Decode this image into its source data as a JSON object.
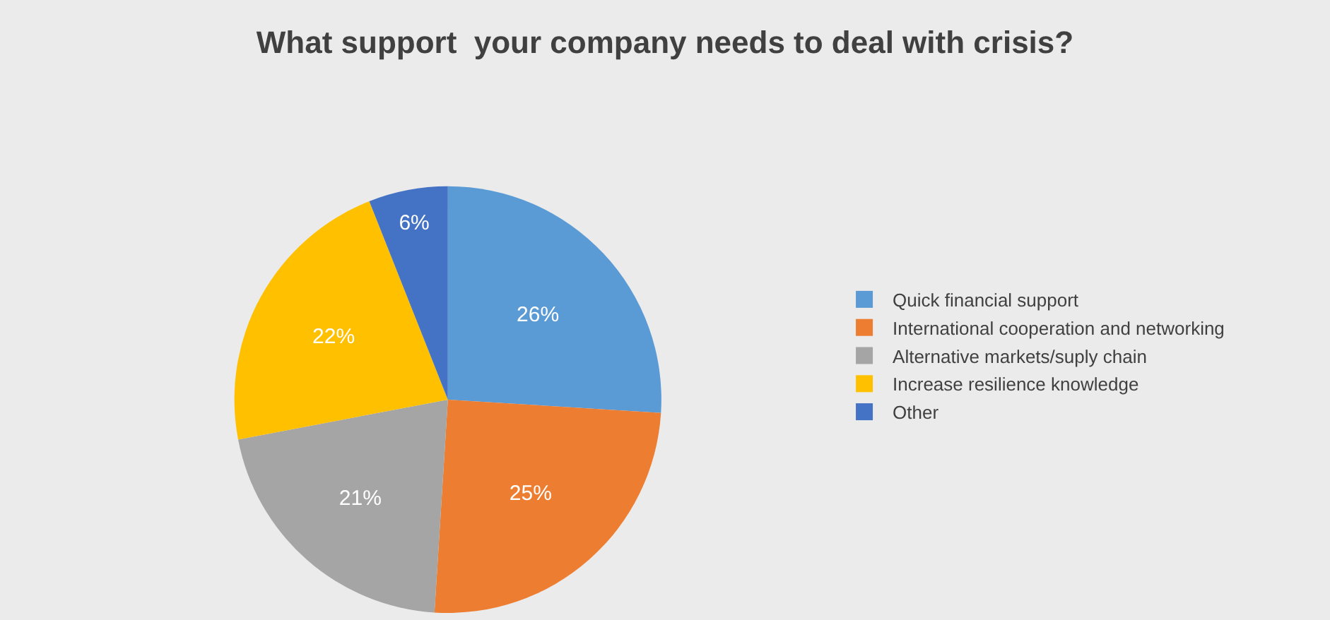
{
  "chart_data": {
    "type": "pie",
    "title": "What support  your company needs to deal with crisis?",
    "categories": [
      "Quick financial support",
      "International cooperation and networking",
      "Alternative markets/suply chain",
      "Increase resilience knowledge",
      "Other"
    ],
    "values": [
      26,
      25,
      21,
      22,
      6
    ],
    "value_labels": [
      "26%",
      "25%",
      "21%",
      "22%",
      "6%"
    ],
    "colors": [
      "#5b9bd5",
      "#ed7d31",
      "#a5a5a5",
      "#ffc000",
      "#4472c4"
    ],
    "legend": "right"
  }
}
